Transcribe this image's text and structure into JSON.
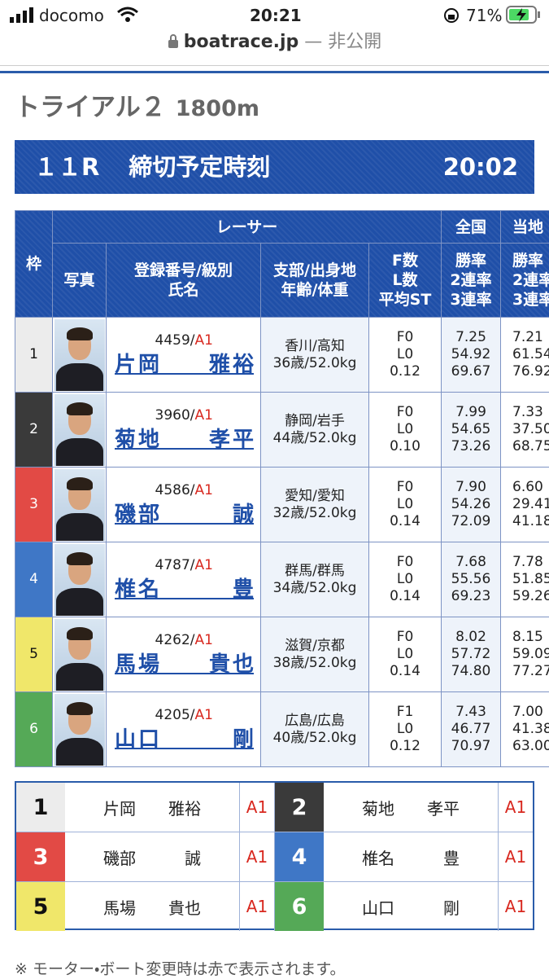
{
  "status": {
    "carrier": "docomo",
    "time": "20:21",
    "battery": "71%"
  },
  "url": {
    "host": "boatrace.jp",
    "note": "— 非公開"
  },
  "heading": {
    "title": "トライアル２",
    "distance": "1800m"
  },
  "race_bar": {
    "race": "１１R",
    "label": "締切予定時刻",
    "time": "20:02"
  },
  "table": {
    "headers": {
      "frame": "枠",
      "racer": "レーサー",
      "national": "全国",
      "local": "当地",
      "photo": "写真",
      "reg_class": "登録番号/級別",
      "name": "氏名",
      "branch": "支部/出身地",
      "age_weight": "年齢/体重",
      "f": "F数",
      "l": "L数",
      "st": "平均ST",
      "win": "勝率",
      "rate2": "2連率",
      "rate3": "3連率",
      "local_win": "勝率",
      "local_rate2": "2連率",
      "local_rate3": "3連率"
    },
    "rows": [
      {
        "frame": "1",
        "reg": "4459/",
        "class": "A1",
        "name": "片岡　　雅裕",
        "branch": "香川/高知",
        "age_weight": "36歳/52.0kg",
        "f": "F0",
        "l": "L0",
        "st": "0.12",
        "national": [
          "7.25",
          "54.92",
          "69.67"
        ],
        "local": [
          "7.21",
          "61.54",
          "76.92"
        ]
      },
      {
        "frame": "2",
        "reg": "3960/",
        "class": "A1",
        "name": "菊地　　孝平",
        "branch": "静岡/岩手",
        "age_weight": "44歳/52.0kg",
        "f": "F0",
        "l": "L0",
        "st": "0.10",
        "national": [
          "7.99",
          "54.65",
          "73.26"
        ],
        "local": [
          "7.33",
          "37.50",
          "68.75"
        ]
      },
      {
        "frame": "3",
        "reg": "4586/",
        "class": "A1",
        "name": "磯部　　　誠",
        "branch": "愛知/愛知",
        "age_weight": "32歳/52.0kg",
        "f": "F0",
        "l": "L0",
        "st": "0.14",
        "national": [
          "7.90",
          "54.26",
          "72.09"
        ],
        "local": [
          "6.60",
          "29.41",
          "41.18"
        ]
      },
      {
        "frame": "4",
        "reg": "4787/",
        "class": "A1",
        "name": "椎名　　　豊",
        "branch": "群馬/群馬",
        "age_weight": "34歳/52.0kg",
        "f": "F0",
        "l": "L0",
        "st": "0.14",
        "national": [
          "7.68",
          "55.56",
          "69.23"
        ],
        "local": [
          "7.78",
          "51.85",
          "59.26"
        ]
      },
      {
        "frame": "5",
        "reg": "4262/",
        "class": "A1",
        "name": "馬場　　貴也",
        "branch": "滋賀/京都",
        "age_weight": "38歳/52.0kg",
        "f": "F0",
        "l": "L0",
        "st": "0.14",
        "national": [
          "8.02",
          "57.72",
          "74.80"
        ],
        "local": [
          "8.15",
          "59.09",
          "77.27"
        ]
      },
      {
        "frame": "6",
        "reg": "4205/",
        "class": "A1",
        "name": "山口　　　剛",
        "branch": "広島/広島",
        "age_weight": "40歳/52.0kg",
        "f": "F1",
        "l": "L0",
        "st": "0.12",
        "national": [
          "7.43",
          "46.77",
          "70.97"
        ],
        "local": [
          "7.00",
          "41.38",
          "63.00"
        ]
      }
    ]
  },
  "summary": [
    {
      "frame": "1",
      "name": "片岡　　雅裕",
      "class": "A1"
    },
    {
      "frame": "2",
      "name": "菊地　　孝平",
      "class": "A1"
    },
    {
      "frame": "3",
      "name": "磯部　　　誠",
      "class": "A1"
    },
    {
      "frame": "4",
      "name": "椎名　　　豊",
      "class": "A1"
    },
    {
      "frame": "5",
      "name": "馬場　　貴也",
      "class": "A1"
    },
    {
      "frame": "6",
      "name": "山口　　　剛",
      "class": "A1"
    }
  ],
  "footnote": "※ モーター・ボート変更時は赤で表示されます。"
}
